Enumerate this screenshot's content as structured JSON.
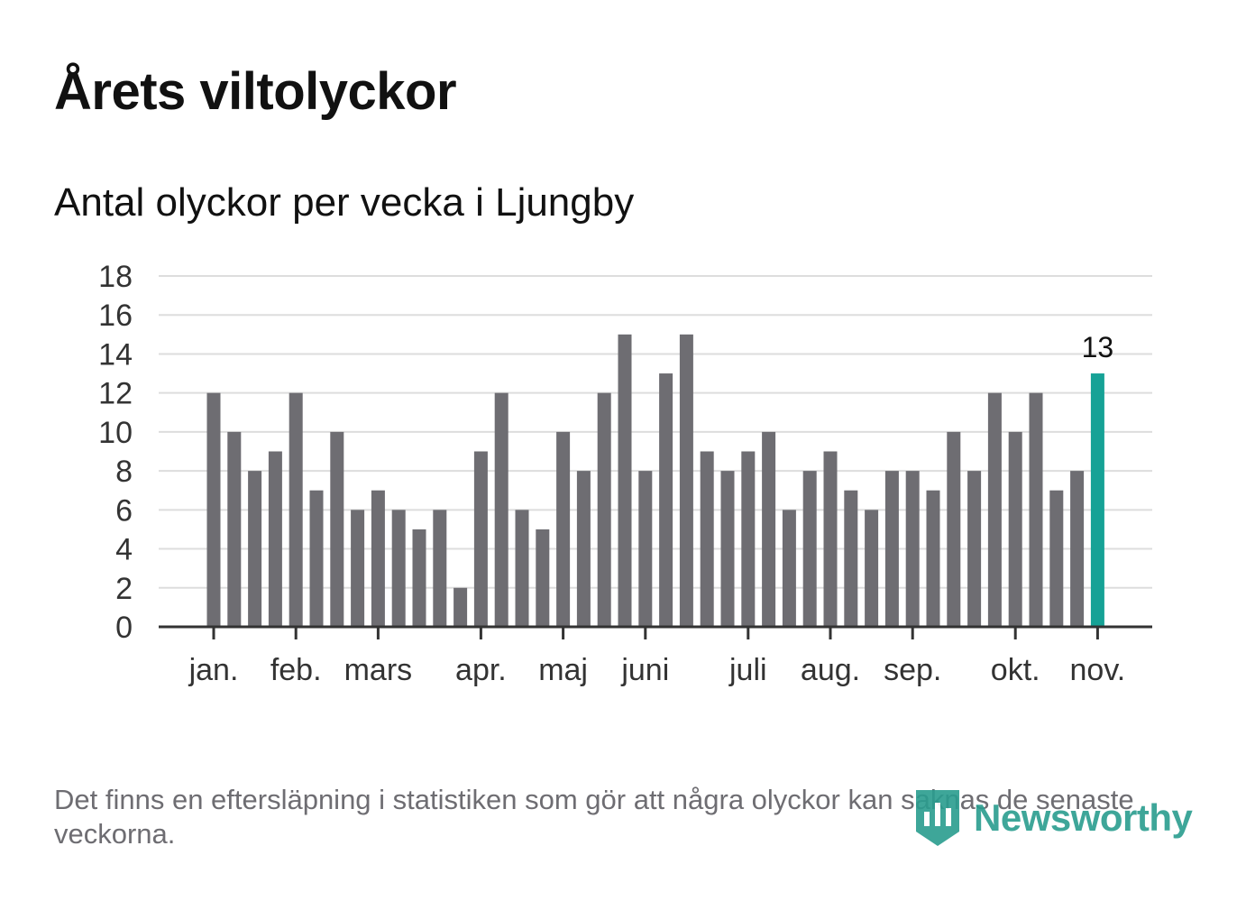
{
  "title": "Årets viltolyckor",
  "subtitle": "Antal olyckor per vecka i Ljungby",
  "footnote": "Det finns en eftersläpning i statistiken som gör att några olyckor kan saknas de senaste veckorna.",
  "brand": {
    "name": "Newsworthy",
    "icon": "newsworthy-logo-icon",
    "color": "#2a9d8f"
  },
  "colors": {
    "bar": "#6e6d72",
    "highlight": "#16a296",
    "grid": "#dddddd",
    "axis": "#333333"
  },
  "chart_data": {
    "type": "bar",
    "title": "Antal olyckor per vecka i Ljungby",
    "xlabel": "",
    "ylabel": "",
    "ylim": [
      0,
      18
    ],
    "yticks": [
      "0",
      "2",
      "4",
      "6",
      "8",
      "10",
      "12",
      "14",
      "16",
      "18"
    ],
    "grid": true,
    "values": [
      12,
      10,
      8,
      9,
      12,
      7,
      10,
      6,
      7,
      6,
      5,
      6,
      2,
      9,
      12,
      6,
      5,
      10,
      8,
      12,
      15,
      8,
      13,
      15,
      9,
      8,
      9,
      10,
      6,
      8,
      9,
      7,
      6,
      8,
      8,
      7,
      10,
      8,
      12,
      10,
      12,
      7,
      8,
      13
    ],
    "highlight_index": 43,
    "highlight_label": "13",
    "month_labels": [
      {
        "label": "jan.",
        "week_index": 0
      },
      {
        "label": "feb.",
        "week_index": 4
      },
      {
        "label": "mars",
        "week_index": 8
      },
      {
        "label": "apr.",
        "week_index": 13
      },
      {
        "label": "maj",
        "week_index": 17
      },
      {
        "label": "juni",
        "week_index": 21
      },
      {
        "label": "juli",
        "week_index": 26
      },
      {
        "label": "aug.",
        "week_index": 30
      },
      {
        "label": "sep.",
        "week_index": 34
      },
      {
        "label": "okt.",
        "week_index": 39
      },
      {
        "label": "nov.",
        "week_index": 43
      }
    ]
  }
}
